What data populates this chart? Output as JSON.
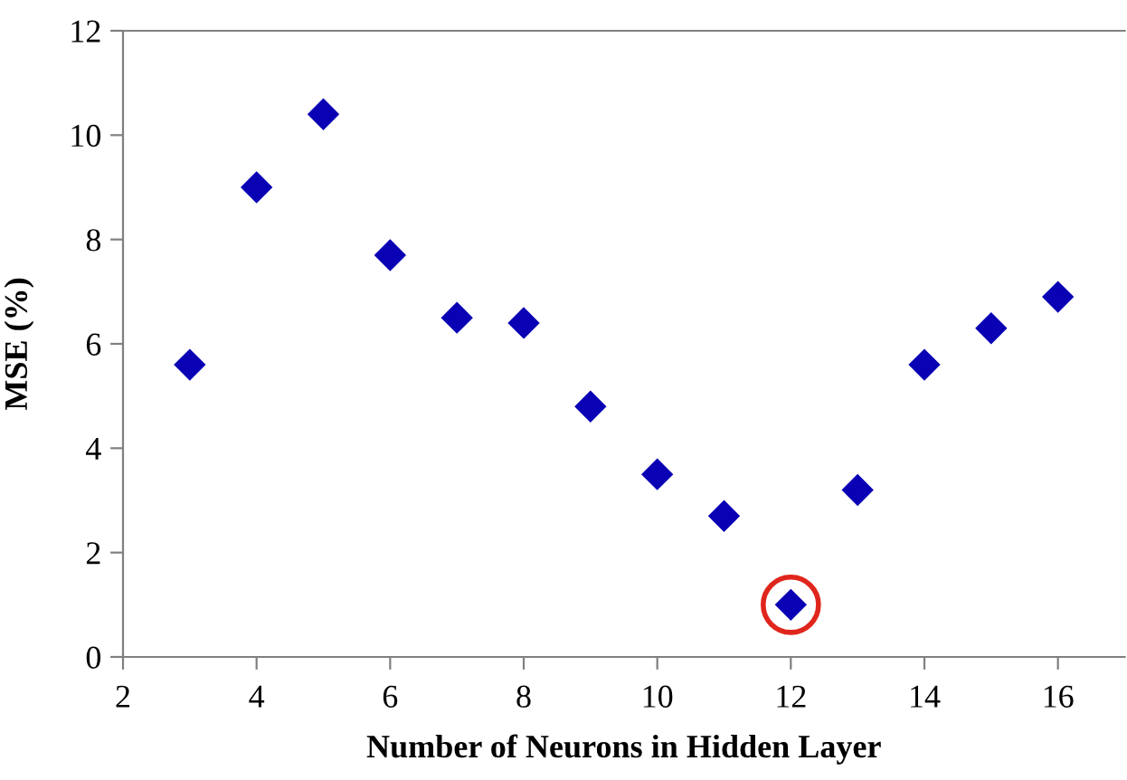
{
  "chart_data": {
    "type": "scatter",
    "xlabel": "Number of Neurons in Hidden Layer",
    "ylabel": "MSE (%)",
    "x": [
      3,
      4,
      5,
      6,
      7,
      8,
      9,
      10,
      11,
      12,
      13,
      14,
      15,
      16
    ],
    "series": [
      {
        "color": "#0a00b4",
        "values": [
          5.6,
          9.0,
          10.4,
          7.7,
          6.5,
          6.4,
          4.8,
          3.5,
          2.7,
          1.0,
          3.2,
          5.6,
          6.3,
          6.9
        ]
      }
    ],
    "marker": "diamond",
    "xlim": [
      2,
      17
    ],
    "ylim": [
      0,
      12
    ],
    "xticks": [
      2,
      4,
      6,
      8,
      10,
      12,
      14,
      16
    ],
    "yticks": [
      0,
      2,
      4,
      6,
      8,
      10,
      12
    ],
    "grid": false,
    "legend": false
  }
}
